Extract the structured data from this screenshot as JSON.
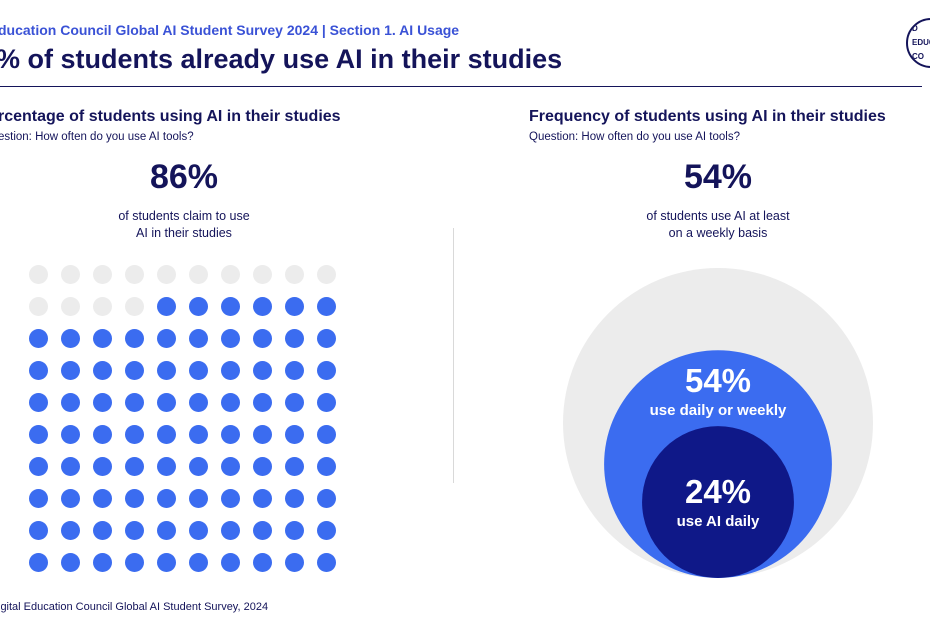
{
  "header": {
    "kicker": "ducation Council Global AI Student Survey 2024 | Section 1. AI Usage",
    "title": "% of students already use AI in their studies",
    "logo_lines": [
      "D",
      "EDUC",
      "CO"
    ]
  },
  "left_panel": {
    "title": "rcentage of students using AI in their studies",
    "question": "estion: How often do you use AI tools?",
    "stat": "86%",
    "caption_lines": [
      "of students claim to use",
      "AI in their studies"
    ]
  },
  "right_panel": {
    "title": "Frequency of students using AI in their studies",
    "question": "Question: How often do you use AI tools?",
    "stat": "54%",
    "caption_lines": [
      "of students use AI at least",
      "on a weekly basis"
    ]
  },
  "source": "igital Education Council Global AI Student Survey, 2024",
  "colors": {
    "navy": "#14145a",
    "accent_blue": "#3b6cf0",
    "dark_blue": "#0f1888",
    "light_gray": "#ececec"
  },
  "chart_data": [
    {
      "type": "waffle",
      "title": "rcentage of students using AI in their studies",
      "grid": [
        10,
        10
      ],
      "total": 100,
      "filled": 86,
      "value_label": "86%"
    },
    {
      "type": "nested-bubble",
      "title": "Frequency of students using AI in their studies",
      "series": [
        {
          "name": "use daily or weekly",
          "value": 54,
          "label": "54%"
        },
        {
          "name": "use AI daily",
          "value": 24,
          "label": "24%"
        }
      ],
      "total": 100
    }
  ]
}
